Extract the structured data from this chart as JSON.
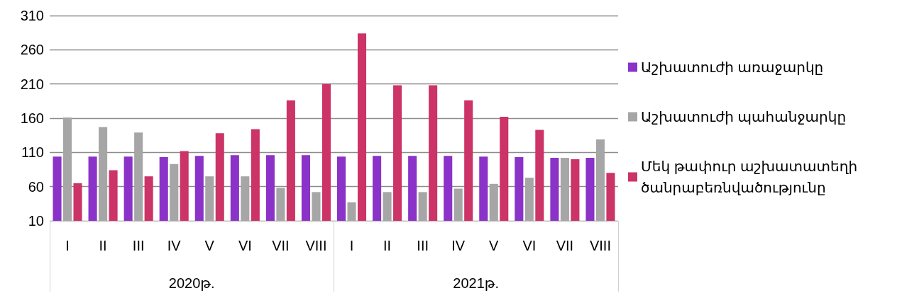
{
  "chart_data": {
    "type": "bar",
    "categories": [
      "I",
      "II",
      "III",
      "IV",
      "V",
      "VI",
      "VII",
      "VIII",
      "I",
      "II",
      "III",
      "IV",
      "V",
      "VI",
      "VII",
      "VIII"
    ],
    "series": [
      {
        "name": "Աշխատուժի առաջարկը",
        "color": "#8b32c8",
        "values": [
          104,
          104,
          104,
          103,
          105,
          106,
          106,
          106,
          104,
          105,
          105,
          105,
          104,
          103,
          102,
          102
        ]
      },
      {
        "name": "Աշխատուժի պահանջարկը",
        "color": "#a6a6a6",
        "values": [
          161,
          147,
          139,
          93,
          75,
          75,
          58,
          52,
          37,
          52,
          52,
          57,
          64,
          73,
          102,
          129
        ]
      },
      {
        "name": "Մեկ թափուր աշխատատեղի ծանրաբեռնվածությունը",
        "color": "#cc3366",
        "values": [
          65,
          84,
          75,
          112,
          138,
          144,
          186,
          210,
          284,
          208,
          208,
          186,
          162,
          143,
          100,
          80
        ]
      }
    ],
    "annotations": [
      "2020թ.",
      "2021թ."
    ],
    "ylim": [
      10,
      310
    ],
    "yticks": [
      10,
      60,
      110,
      160,
      210,
      260,
      310
    ],
    "grid": "y",
    "legend": "right"
  }
}
